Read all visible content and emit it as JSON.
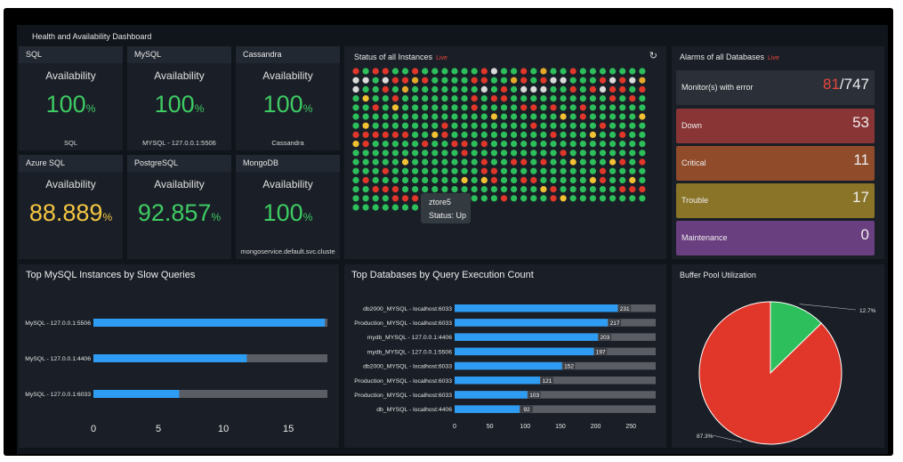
{
  "dashboard": {
    "title": "Health and Availability Dashboard"
  },
  "availability_label": "Availability",
  "avail_cards": [
    {
      "name": "SQL",
      "value": "100",
      "unit": "%",
      "sub": "SQL",
      "color": "#3ecb63"
    },
    {
      "name": "MySQL",
      "value": "100",
      "unit": "%",
      "sub": "MYSQL - 127.0.0.1:5506",
      "color": "#3ecb63"
    },
    {
      "name": "Cassandra",
      "value": "100",
      "unit": "%",
      "sub": "Cassandra",
      "color": "#3ecb63"
    },
    {
      "name": "Azure SQL",
      "value": "88.889",
      "unit": "%",
      "sub": "",
      "color": "#f4c542"
    },
    {
      "name": "PostgreSQL",
      "value": "92.857",
      "unit": "%",
      "sub": "",
      "color": "#3ecb63"
    },
    {
      "name": "MongoDB",
      "value": "100",
      "unit": "%",
      "sub": "mongoservice.default.svc.cluste",
      "color": "#3ecb63"
    }
  ],
  "status": {
    "title": "Status of all Instances",
    "live": "Live",
    "tooltip_name": "ztore5",
    "tooltip_status": "Status: Up"
  },
  "alarms": {
    "title": "Alarms of all Databases",
    "live": "Live",
    "items": [
      {
        "label": "Monitor(s) with error",
        "value": "81",
        "total": "/747",
        "color": "#2b3038"
      },
      {
        "label": "Down",
        "value": "53",
        "color": "#8a3535"
      },
      {
        "label": "Critical",
        "value": "11",
        "color": "#8f4b2a"
      },
      {
        "label": "Trouble",
        "value": "17",
        "color": "#8a7428"
      },
      {
        "label": "Maintenance",
        "value": "0",
        "color": "#6a3f80"
      }
    ]
  },
  "chart_data": [
    {
      "type": "bar",
      "title": "Top MySQL Instances by Slow Queries",
      "orientation": "horizontal",
      "categories": [
        "MySQL - 127.0.0.1:5506",
        "MySQL - 127.0.0.1:4406",
        "MySQL - 127.0.0.1:6033"
      ],
      "values": [
        17.8,
        11.8,
        6.6
      ],
      "xlim": [
        0,
        18
      ],
      "xticks": [
        0,
        5,
        10,
        15
      ],
      "bar_color": "#2f9cf4",
      "track_color": "#5a5d63"
    },
    {
      "type": "bar",
      "title": "Top Databases by Query Execution Count",
      "orientation": "horizontal",
      "categories": [
        "db2000_MYSQL - localhost:6033",
        "Production_MYSQL - localhost:6033",
        "mydb_MYSQL - 127.0.0.1:4406",
        "mydb_MYSQL - 127.0.0.1:5506",
        "db2000_MYSQL - localhost:6033",
        "Production_MYSQL - localhost:6033",
        "Production_MYSQL - localhost:6033",
        "db_MYSQL - localhost:4406"
      ],
      "values": [
        231,
        217,
        203,
        197,
        152,
        121,
        103,
        92
      ],
      "xlim": [
        0,
        285
      ],
      "xticks": [
        0,
        50,
        100,
        150,
        200,
        250
      ],
      "bar_color": "#2f9cf4",
      "track_color": "#5a5d63"
    },
    {
      "type": "pie",
      "title": "Buffer Pool Utilization",
      "slices": [
        {
          "label": "12.7%",
          "value": 12.7,
          "color": "#2dbf5b"
        },
        {
          "label": "87.3%",
          "value": 87.3,
          "color": "#e0372a"
        }
      ]
    }
  ]
}
